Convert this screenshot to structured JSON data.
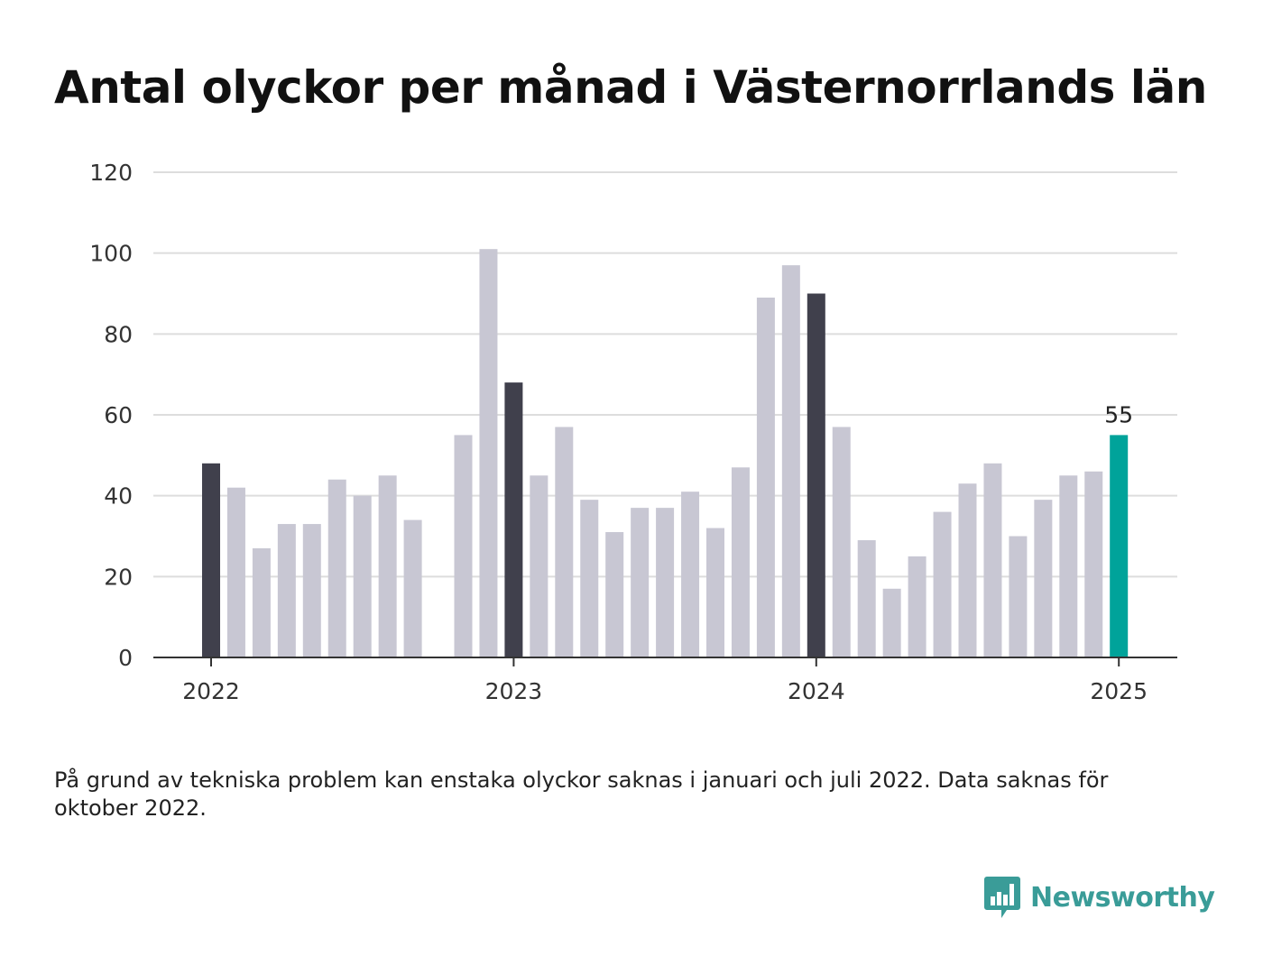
{
  "colors": {
    "bar_default": "#c8c7d3",
    "bar_january": "#40404c",
    "bar_latest": "#00a39a",
    "gridline": "#dddddd",
    "axis": "#333333",
    "brand": "#3a9c98"
  },
  "brand": {
    "name": "Newsworthy",
    "icon": "bar-chart-logo-icon"
  },
  "chart_data": {
    "type": "bar",
    "title": "Antal olyckor per månad i Västernorrlands län",
    "note": "På grund av tekniska problem kan enstaka olyckor saknas i januari och juli 2022. Data saknas för oktober 2022.",
    "ylim": [
      0,
      120
    ],
    "y_ticks": [
      "0",
      "20",
      "40",
      "60",
      "80",
      "100",
      "120"
    ],
    "x_ticks": [
      {
        "label": "2022",
        "month": "2022-01"
      },
      {
        "label": "2023",
        "month": "2023-01"
      },
      {
        "label": "2024",
        "month": "2024-01"
      },
      {
        "label": "2025",
        "month": "2025-01"
      }
    ],
    "grid": true,
    "months": [
      "2022-01",
      "2022-02",
      "2022-03",
      "2022-04",
      "2022-05",
      "2022-06",
      "2022-07",
      "2022-08",
      "2022-09",
      "2022-10",
      "2022-11",
      "2022-12",
      "2023-01",
      "2023-02",
      "2023-03",
      "2023-04",
      "2023-05",
      "2023-06",
      "2023-07",
      "2023-08",
      "2023-09",
      "2023-10",
      "2023-11",
      "2023-12",
      "2024-01",
      "2024-02",
      "2024-03",
      "2024-04",
      "2024-05",
      "2024-06",
      "2024-07",
      "2024-08",
      "2024-09",
      "2024-10",
      "2024-11",
      "2024-12",
      "2025-01"
    ],
    "values": [
      48,
      42,
      27,
      33,
      33,
      44,
      40,
      45,
      34,
      null,
      55,
      101,
      68,
      45,
      57,
      39,
      31,
      37,
      37,
      41,
      32,
      47,
      89,
      97,
      90,
      57,
      29,
      17,
      25,
      36,
      43,
      48,
      30,
      39,
      45,
      46,
      55
    ],
    "highlight": {
      "month": "2025-01",
      "label": "55"
    }
  }
}
